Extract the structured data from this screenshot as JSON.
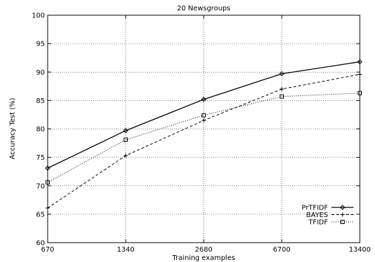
{
  "chart_data": {
    "type": "line",
    "title": "20 Newsgroups",
    "xlabel": "Training examples",
    "ylabel": "Accuracy Test (%)",
    "categories": [
      "670",
      "1340",
      "2680",
      "6700",
      "13400"
    ],
    "ylim": [
      60,
      100
    ],
    "yticks": [
      "60",
      "65",
      "70",
      "75",
      "80",
      "85",
      "90",
      "95",
      "100"
    ],
    "grid": true,
    "legend_position": "bottom-right",
    "series": [
      {
        "name": "PrTFIDF",
        "values": [
          73.1,
          79.7,
          85.2,
          89.7,
          91.8
        ],
        "marker": "diamond",
        "dash": "solid"
      },
      {
        "name": "BAYES",
        "values": [
          66.1,
          75.3,
          81.5,
          87.0,
          89.6
        ],
        "marker": "plus",
        "dash": "dashed"
      },
      {
        "name": "TFIDF",
        "values": [
          70.6,
          78.1,
          82.4,
          85.7,
          86.3
        ],
        "marker": "square",
        "dash": "dotted"
      }
    ]
  }
}
